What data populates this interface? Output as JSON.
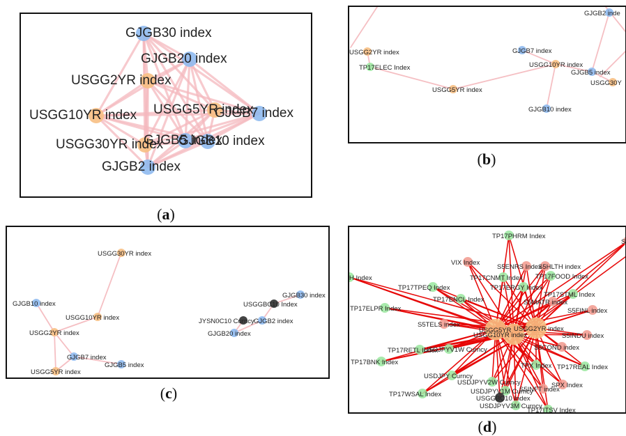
{
  "colors": {
    "orange": "#f7bf83",
    "blue": "#8fbaf0",
    "green": "#9ee8a3",
    "salmon": "#f29f94",
    "dark": "#3a3a3a",
    "edge_light": "#f4b8bd",
    "edge_red": "#e60000"
  },
  "captions": [
    "a",
    "b",
    "c",
    "d"
  ],
  "panels": [
    {
      "id": "a",
      "nodes": [
        {
          "key": "GJGB30",
          "label": "GJGB30 index",
          "color": "blue"
        },
        {
          "key": "GJGB20",
          "label": "GJGB20 index",
          "color": "blue"
        },
        {
          "key": "USGG2YR",
          "label": "USGG2YR index",
          "color": "orange"
        },
        {
          "key": "USGG10YR",
          "label": "USGG10YR index",
          "color": "orange"
        },
        {
          "key": "USGG5YR",
          "label": "USGG5YR index",
          "color": "orange"
        },
        {
          "key": "GJGB7",
          "label": "GJGB7 index",
          "color": "blue"
        },
        {
          "key": "USGG30YR",
          "label": "USGG30YR index",
          "color": "orange"
        },
        {
          "key": "GJGB5",
          "label": "GJGB5 index",
          "color": "blue"
        },
        {
          "key": "GJGB10",
          "label": "GJGB10 index",
          "color": "blue"
        },
        {
          "key": "GJGB2",
          "label": "GJGB2 index",
          "color": "blue"
        }
      ]
    },
    {
      "id": "b",
      "nodes": [
        {
          "key": "GJGB2",
          "label": "GJGB2 inde",
          "color": "blue"
        },
        {
          "key": "USGG2YR",
          "label": "USGG2YR index",
          "color": "orange"
        },
        {
          "key": "GJGB7",
          "label": "GJGB7 index",
          "color": "blue"
        },
        {
          "key": "TP17ELEC",
          "label": "TP17ELEC Index",
          "color": "green"
        },
        {
          "key": "USGG10YR",
          "label": "USGG10YR index",
          "color": "orange"
        },
        {
          "key": "GJGB5",
          "label": "GJGB5 index",
          "color": "blue"
        },
        {
          "key": "USGG30YR",
          "label": "USGG30Y",
          "color": "orange"
        },
        {
          "key": "USGG5YR",
          "label": "USGG5YR index",
          "color": "orange"
        },
        {
          "key": "GJGB10",
          "label": "GJGB10 index",
          "color": "blue"
        }
      ]
    },
    {
      "id": "c",
      "nodes": [
        {
          "key": "USGG30YR",
          "label": "USGG30YR index",
          "color": "orange"
        },
        {
          "key": "GJGB30",
          "label": "GJGB30 index",
          "color": "blue"
        },
        {
          "key": "USGGBC10",
          "label": "USGGBC10 Index",
          "color": "dark"
        },
        {
          "key": "GJGB10",
          "label": "GJGB10 index",
          "color": "blue"
        },
        {
          "key": "USGG10YR",
          "label": "USGG10YR index",
          "color": "orange"
        },
        {
          "key": "JYSN0C10",
          "label": "JYSN0C10 Curncy",
          "color": "dark"
        },
        {
          "key": "GJGB2",
          "label": "GJGB2 index",
          "color": "blue"
        },
        {
          "key": "GJGB20",
          "label": "GJGB20 index",
          "color": "blue"
        },
        {
          "key": "USGG2YR",
          "label": "USGG2YR index",
          "color": "orange"
        },
        {
          "key": "GJGB7",
          "label": "GJGB7 index",
          "color": "blue"
        },
        {
          "key": "GJGB5",
          "label": "GJGB5 index",
          "color": "blue"
        },
        {
          "key": "USGG5YR",
          "label": "USGG5YR index",
          "color": "orange"
        }
      ]
    },
    {
      "id": "d",
      "nodes": [
        {
          "key": "TP17PHRM",
          "label": "TP17PHRM Index",
          "color": "green"
        },
        {
          "key": "S5",
          "label": "S",
          "color": "salmon"
        },
        {
          "key": "VIX",
          "label": "VIX Index",
          "color": "salmon"
        },
        {
          "key": "S5ENRS",
          "label": "S5ENRS Index",
          "color": "salmon"
        },
        {
          "key": "S5HLTH",
          "label": "S5HLTH index",
          "color": "salmon"
        },
        {
          "key": "H",
          "label": "H Index",
          "color": "green"
        },
        {
          "key": "TP17CNMT",
          "label": "TP17CNMT Index",
          "color": "green"
        },
        {
          "key": "TP17FOOD",
          "label": "TP17FOOD Index",
          "color": "green"
        },
        {
          "key": "TP17TPEQ",
          "label": "TP17TPEQ Index",
          "color": "green"
        },
        {
          "key": "TP17ERGY",
          "label": "TP17ERGY Index",
          "color": "green"
        },
        {
          "key": "TP17STML",
          "label": "TP17STML Index",
          "color": "green"
        },
        {
          "key": "TP17ENCL",
          "label": "TP17ENCL Index",
          "color": "green"
        },
        {
          "key": "S5MATR",
          "label": "S5MATR index",
          "color": "salmon"
        },
        {
          "key": "TP17ELPR",
          "label": "TP17ELPR Index",
          "color": "green"
        },
        {
          "key": "S5FINL",
          "label": "S5FINL index",
          "color": "salmon"
        },
        {
          "key": "S5TELS",
          "label": "S5TELS index",
          "color": "salmon"
        },
        {
          "key": "USGG5YR",
          "label": "USGG5YR",
          "color": "orange"
        },
        {
          "key": "USGG2YR",
          "label": "USGG2YR index",
          "color": "orange"
        },
        {
          "key": "USGG10YR",
          "label": "USGG10YR index",
          "color": "orange"
        },
        {
          "key": "S5INDU",
          "label": "S5INDU index",
          "color": "salmon"
        },
        {
          "key": "TP17RETL",
          "label": "TP17RETL Index",
          "color": "green"
        },
        {
          "key": "USDJPYV1W",
          "label": "USDJPYV1W Curncy",
          "color": "green"
        },
        {
          "key": "S5COND",
          "label": "S5COND index",
          "color": "salmon"
        },
        {
          "key": "TP17BNK",
          "label": "TP17BNK Index",
          "color": "green"
        },
        {
          "key": "TPX",
          "label": "TPX Index",
          "color": "green"
        },
        {
          "key": "TP17REAL",
          "label": "TP17REAL Index",
          "color": "green"
        },
        {
          "key": "USDJPY",
          "label": "USDJPY Curncy",
          "color": "green"
        },
        {
          "key": "USDJPYV2W",
          "label": "USDJPYV2W Curncy",
          "color": "green"
        },
        {
          "key": "USDJPYV1M",
          "label": "USDJPYV1M Curncy",
          "color": "green"
        },
        {
          "key": "S5INFT",
          "label": "S5INFT index",
          "color": "salmon"
        },
        {
          "key": "SPX",
          "label": "SPX Index",
          "color": "salmon"
        },
        {
          "key": "TP17WSAL",
          "label": "TP17WSAL Index",
          "color": "green"
        },
        {
          "key": "USGGBC10",
          "label": "USGGBC10 Index",
          "color": "dark"
        },
        {
          "key": "USDJPYV3M",
          "label": "USDJPYV3M Curncy",
          "color": "green"
        },
        {
          "key": "TP17ITSV",
          "label": "TP17ITSV Index",
          "color": "green"
        }
      ]
    }
  ]
}
